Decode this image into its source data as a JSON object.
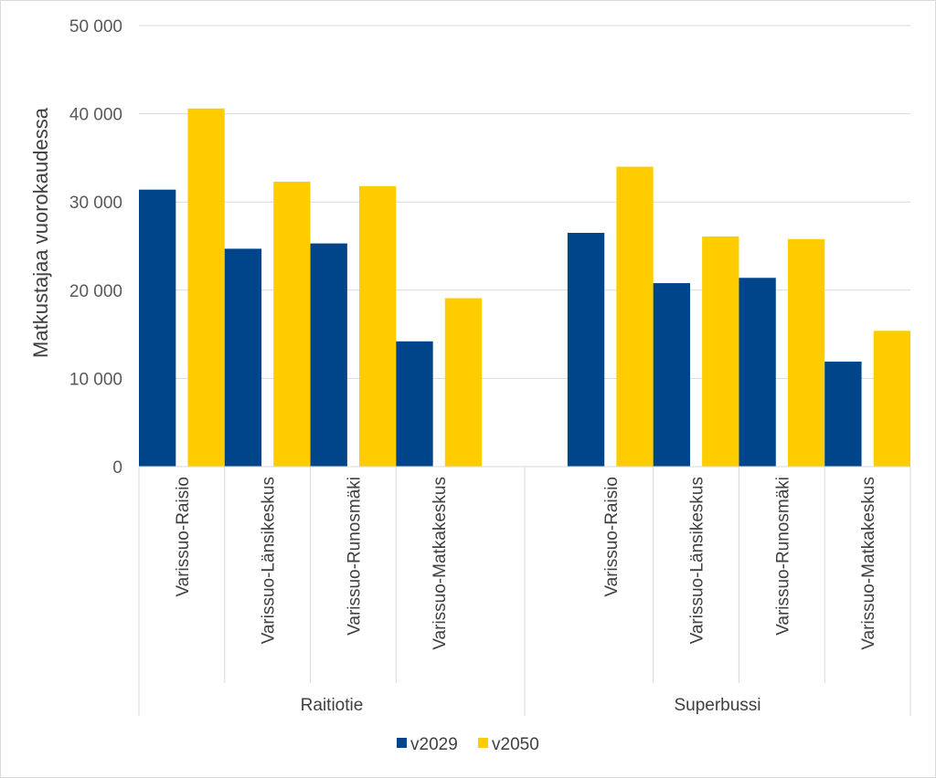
{
  "chart_data": {
    "type": "bar",
    "title": "",
    "ylabel": "Matkustajaa vuorokaudessa",
    "xlabel": "",
    "ylim": [
      0,
      50000
    ],
    "yticks": [
      0,
      10000,
      20000,
      30000,
      40000,
      50000
    ],
    "ytick_labels": [
      "0",
      "10 000",
      "20 000",
      "30 000",
      "40 000",
      "50 000"
    ],
    "grid": true,
    "legend_position": "bottom",
    "groups": [
      {
        "name": "Raitiotie",
        "categories": [
          "Varissuo-Raisio",
          "Varissuo-Länsikeskus",
          "Varissuo-Runosmäki",
          "Varissuo-Matkakeskus"
        ],
        "series": [
          {
            "name": "v2029",
            "values": [
              31400,
              24700,
              25300,
              14200
            ]
          },
          {
            "name": "v2050",
            "values": [
              40600,
              32300,
              31800,
              19100
            ]
          }
        ]
      },
      {
        "name": "Superbussi",
        "categories": [
          "Varissuo-Raisio",
          "Varissuo-Länsikeskus",
          "Varissuo-Runosmäki",
          "Varissuo-Matkakeskus"
        ],
        "series": [
          {
            "name": "v2029",
            "values": [
              26500,
              20800,
              21400,
              11900
            ]
          },
          {
            "name": "v2050",
            "values": [
              34000,
              26100,
              25800,
              15400
            ]
          }
        ]
      }
    ],
    "legend": [
      {
        "name": "v2029",
        "color": "#004489"
      },
      {
        "name": "v2050",
        "color": "#FFCC00"
      }
    ]
  }
}
